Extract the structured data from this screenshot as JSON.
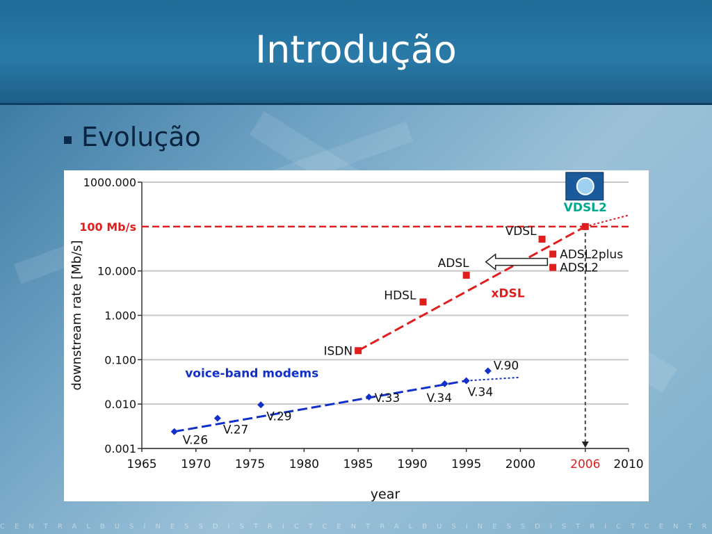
{
  "slide": {
    "title": "Introdução",
    "bullet": "Evolução",
    "footer": "CENTRALBUSINESSDISTRICTCENTRALBUSINESSDISTRICTCENTRA"
  },
  "colors": {
    "dsl": "#e01e1e",
    "modem": "#1030c8",
    "vdsl2": "#00a890",
    "grid": "#c8c8c8"
  },
  "chart_data": {
    "type": "scatter",
    "xlabel": "year",
    "ylabel": "downstream rate [Mb/s]",
    "xlim": [
      1965,
      2010
    ],
    "ylim": [
      0.001,
      1000
    ],
    "yscale": "log",
    "grid": true,
    "x_ticks": [
      "1965",
      "1970",
      "1975",
      "1980",
      "1985",
      "1990",
      "1995",
      "2000",
      "2006",
      "2010"
    ],
    "y_ticks": [
      "0.001",
      "0.010",
      "0.100",
      "1.000",
      "10.000",
      "1000.000"
    ],
    "ref_line_label": "100 Mb/s",
    "ref_line_value": 100,
    "year_marker": 2006,
    "series": [
      {
        "name": "xDSL",
        "points": [
          {
            "label": "ISDN",
            "x": 1985,
            "y": 0.16
          },
          {
            "label": "HDSL",
            "x": 1991,
            "y": 2.0
          },
          {
            "label": "ADSL",
            "x": 1995,
            "y": 8.0
          },
          {
            "label": "VDSL",
            "x": 2002,
            "y": 52
          },
          {
            "label": "VDSL2",
            "x": 2006,
            "y": 100
          }
        ]
      },
      {
        "name": "voice-band modems",
        "points": [
          {
            "label": "V.26",
            "x": 1968,
            "y": 0.0024
          },
          {
            "label": "V.27",
            "x": 1972,
            "y": 0.0048
          },
          {
            "label": "V.29",
            "x": 1976,
            "y": 0.0096
          },
          {
            "label": "V.33",
            "x": 1986,
            "y": 0.0144
          },
          {
            "label": "V.34",
            "x": 1993,
            "y": 0.0288
          },
          {
            "label": "V.34",
            "x": 1995,
            "y": 0.0336
          },
          {
            "label": "V.90",
            "x": 1997,
            "y": 0.056
          }
        ]
      }
    ],
    "extra_points": [
      {
        "label": "ADSL2plus",
        "x": 2003,
        "y": 24
      },
      {
        "label": "ADSL2",
        "x": 2003,
        "y": 12
      }
    ]
  }
}
